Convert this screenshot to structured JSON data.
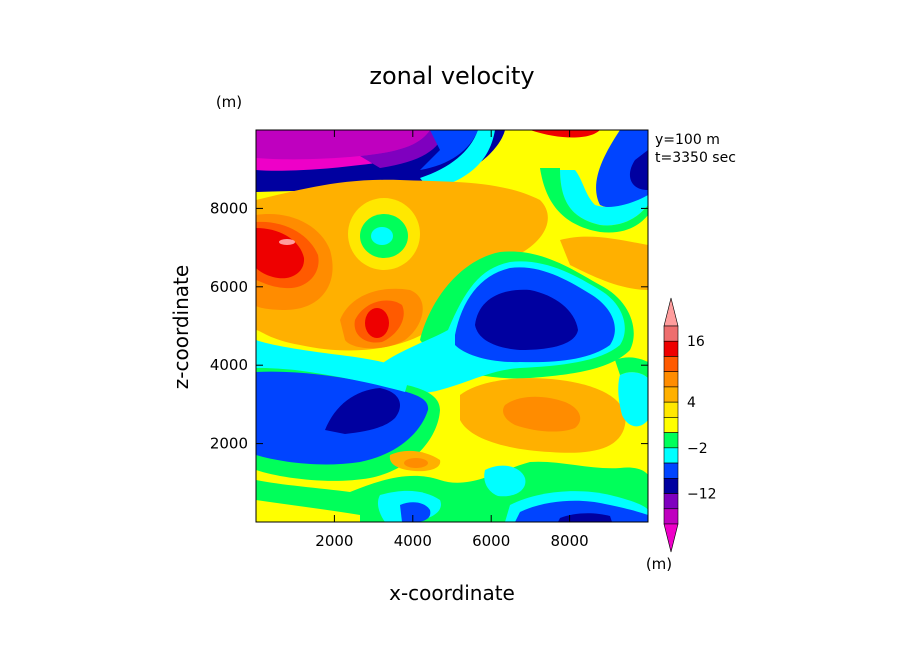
{
  "chart_data": {
    "type": "heatmap",
    "title": "zonal velocity",
    "xlabel": "x-coordinate",
    "ylabel": "z-coordinate",
    "x_unit": "(m)",
    "y_unit": "(m)",
    "annotations": [
      "y=100 m",
      "t=3350 sec"
    ],
    "xlim": [
      0,
      10000
    ],
    "ylim": [
      0,
      10000
    ],
    "x_ticks": [
      2000,
      4000,
      6000,
      8000
    ],
    "x_tick_labels": [
      "2000",
      "4000",
      "6000",
      "8000"
    ],
    "y_ticks": [
      2000,
      4000,
      6000,
      8000
    ],
    "y_tick_labels": [
      "2000",
      "4000",
      "6000",
      "8000"
    ],
    "colorbar": {
      "unit": "(m)",
      "tick_labels": [
        {
          "level": 16,
          "label": "16"
        },
        {
          "level": 4,
          "label": "4"
        },
        {
          "level": -2,
          "label": "−2"
        },
        {
          "level": -12,
          "label": "−12"
        }
      ],
      "bins": [
        {
          "range": "> 20",
          "color": "#ff9d9d"
        },
        {
          "range": "16 to 20",
          "color": "#ee6e6e"
        },
        {
          "range": "12 to 16",
          "color": "#ee0000"
        },
        {
          "range": "8 to 12",
          "color": "#ff5a00"
        },
        {
          "range": "6 to 8",
          "color": "#ff8c00"
        },
        {
          "range": "4 to 6",
          "color": "#ffb000"
        },
        {
          "range": "2 to 4",
          "color": "#ffe800"
        },
        {
          "range": "0 to 2",
          "color": "#ffff00"
        },
        {
          "range": "-2 to 0",
          "color": "#00ff5a"
        },
        {
          "range": "-6 to -2",
          "color": "#00ffff"
        },
        {
          "range": "-9 to -6",
          "color": "#0044ff"
        },
        {
          "range": "-12 to -9",
          "color": "#0000a0"
        },
        {
          "range": "-15 to -12",
          "color": "#7f00bf"
        },
        {
          "range": "-18 to -15",
          "color": "#bf00bf"
        },
        {
          "range": "< -18",
          "color": "#ee00c8"
        }
      ]
    },
    "grid": false
  }
}
